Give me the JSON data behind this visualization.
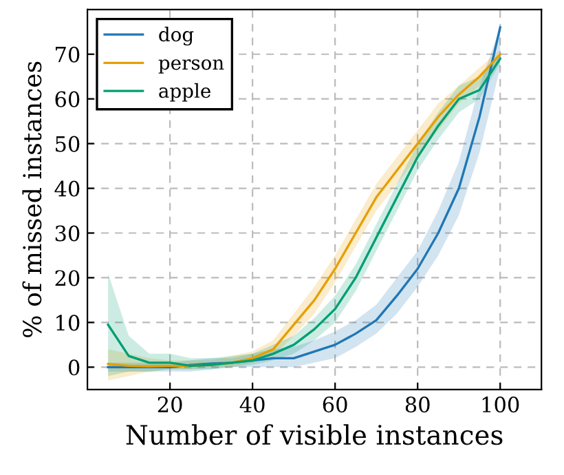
{
  "chart_data": {
    "type": "line",
    "xlabel": "Number of visible instances",
    "ylabel": "% of missed instances",
    "x": [
      5,
      10,
      15,
      20,
      25,
      30,
      35,
      40,
      45,
      50,
      55,
      60,
      65,
      70,
      75,
      80,
      85,
      90,
      95,
      100
    ],
    "xlim": [
      0,
      110
    ],
    "ylim": [
      -5,
      80
    ],
    "xticks": [
      20,
      40,
      60,
      80,
      100
    ],
    "yticks": [
      0,
      10,
      20,
      30,
      40,
      50,
      60,
      70
    ],
    "grid": true,
    "legend": "top left",
    "marker": "none",
    "line_style": "solid",
    "series": [
      {
        "name": "dog",
        "color": "#1f77b4",
        "values": [
          0,
          0,
          0,
          0,
          0.5,
          0.8,
          1,
          1.5,
          2,
          2,
          3.5,
          5,
          7.5,
          10.5,
          16,
          22,
          30,
          40,
          56,
          76
        ],
        "lower": [
          -1,
          -1,
          -1,
          -1,
          -1,
          -0.5,
          0,
          0,
          0,
          0,
          1,
          2,
          4.5,
          7.5,
          12,
          18,
          25,
          34,
          48,
          67
        ],
        "upper": [
          1,
          1,
          1,
          1,
          1.5,
          2,
          2,
          3,
          4,
          4.5,
          6,
          8,
          10.5,
          14,
          20,
          26,
          35,
          46,
          63,
          76
        ]
      },
      {
        "name": "person",
        "color": "#e69f00",
        "values": [
          0.7,
          0.3,
          0.2,
          0.3,
          0.3,
          0.5,
          1,
          2,
          4,
          9.5,
          15,
          22,
          30,
          38,
          44,
          50,
          56,
          61,
          65,
          70
        ],
        "lower": [
          -3,
          -2,
          -1,
          -0.5,
          -0.5,
          0,
          0,
          1,
          2.5,
          7,
          12,
          19,
          27,
          35,
          41,
          47,
          53,
          59,
          63,
          69
        ],
        "upper": [
          4,
          3,
          2,
          1.5,
          1.5,
          1.5,
          2.5,
          3.5,
          6,
          12,
          18,
          25,
          33,
          41,
          47,
          53,
          59,
          63,
          67,
          71
        ]
      },
      {
        "name": "apple",
        "color": "#009e73",
        "values": [
          9.5,
          2.5,
          1,
          1,
          0.3,
          0.5,
          1,
          1.5,
          3,
          5,
          8.5,
          13,
          20,
          29,
          38,
          47,
          54,
          60,
          62,
          69
        ],
        "lower": [
          -2,
          -1,
          -1,
          -0.5,
          -0.5,
          -0.5,
          0,
          0.5,
          1.5,
          3,
          6,
          10,
          17,
          26,
          35,
          44,
          51,
          57,
          60,
          68
        ],
        "upper": [
          21,
          7,
          3,
          3,
          2,
          2,
          2.5,
          3,
          5,
          7,
          11,
          16,
          23,
          32,
          41,
          50,
          57,
          63,
          65,
          70
        ]
      }
    ]
  }
}
